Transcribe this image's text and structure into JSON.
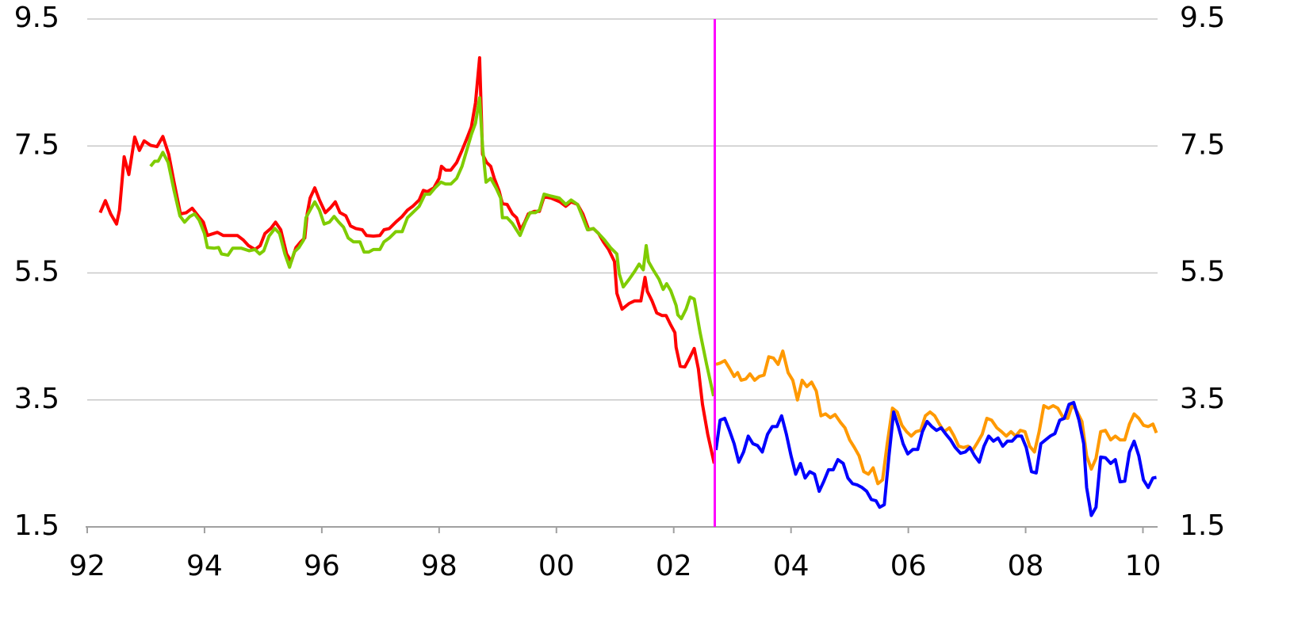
{
  "chart_data": {
    "type": "line",
    "xlim": [
      1992,
      2010.25
    ],
    "xticks": [
      {
        "value": 1992,
        "label": "92"
      },
      {
        "value": 1994,
        "label": "94"
      },
      {
        "value": 1996,
        "label": "96"
      },
      {
        "value": 1998,
        "label": "98"
      },
      {
        "value": 2000,
        "label": "00"
      },
      {
        "value": 2002,
        "label": "02"
      },
      {
        "value": 2004,
        "label": "04"
      },
      {
        "value": 2006,
        "label": "06"
      },
      {
        "value": 2008,
        "label": "08"
      },
      {
        "value": 2010,
        "label": "10"
      }
    ],
    "ylim": [
      1.5,
      9.5
    ],
    "yticks": [
      1.5,
      3.5,
      5.5,
      7.5,
      9.5
    ],
    "y2lim": [
      1.5,
      9.5
    ],
    "y2ticks": [
      1.5,
      3.5,
      5.5,
      7.5,
      9.5
    ],
    "grid": true,
    "vertical_line": {
      "x": 2002.7,
      "color": "#ff00ff"
    },
    "series": [
      {
        "color": "#ff0000",
        "x": [
          1992.22,
          1992.31,
          1992.4,
          1992.5,
          1992.55,
          1992.63,
          1992.71,
          1992.81,
          1992.89,
          1992.97,
          1993.08,
          1993.19,
          1993.29,
          1993.39,
          1993.48,
          1993.59,
          1993.69,
          1993.79,
          1993.89,
          1993.98,
          1994.05,
          1994.22,
          1994.32,
          1994.56,
          1994.66,
          1994.75,
          1994.86,
          1994.95,
          1995.03,
          1995.13,
          1995.21,
          1995.3,
          1995.4,
          1995.48,
          1995.56,
          1995.64,
          1995.71,
          1995.75,
          1995.8,
          1995.88,
          1995.96,
          1996.06,
          1996.15,
          1996.23,
          1996.31,
          1996.41,
          1996.49,
          1996.58,
          1996.69,
          1996.76,
          1996.88,
          1996.99,
          1997.06,
          1997.15,
          1997.26,
          1997.37,
          1997.46,
          1997.55,
          1997.66,
          1997.73,
          1997.8,
          1997.91,
          1998.0,
          1998.04,
          1998.11,
          1998.2,
          1998.3,
          1998.39,
          1998.47,
          1998.55,
          1998.62,
          1998.69,
          1998.74,
          1998.81,
          1998.88,
          1998.94,
          1999.02,
          1999.08,
          1999.16,
          1999.25,
          1999.32,
          1999.39,
          1999.46,
          1999.52,
          1999.62,
          1999.71,
          1999.79,
          1999.91,
          2000.06,
          2000.16,
          2000.25,
          2000.36,
          2000.45,
          2000.55,
          2000.63,
          2000.72,
          2000.8,
          2000.89,
          2000.99,
          2001.03,
          2001.12,
          2001.24,
          2001.33,
          2001.44,
          2001.51,
          2001.55,
          2001.63,
          2001.71,
          2001.8,
          2001.87,
          2001.95,
          2002.02,
          2002.04,
          2002.11,
          2002.19,
          2002.27,
          2002.35,
          2002.42,
          2002.49,
          2002.58,
          2002.69
        ],
        "values": [
          6.45,
          6.64,
          6.43,
          6.27,
          6.49,
          7.33,
          7.05,
          7.64,
          7.43,
          7.58,
          7.51,
          7.49,
          7.65,
          7.37,
          6.93,
          6.43,
          6.45,
          6.52,
          6.4,
          6.3,
          6.09,
          6.14,
          6.09,
          6.09,
          6.02,
          5.93,
          5.87,
          5.93,
          6.12,
          6.2,
          6.3,
          6.18,
          5.8,
          5.68,
          5.9,
          5.99,
          6.05,
          6.43,
          6.68,
          6.84,
          6.65,
          6.45,
          6.53,
          6.62,
          6.45,
          6.4,
          6.24,
          6.2,
          6.18,
          6.09,
          6.08,
          6.09,
          6.18,
          6.2,
          6.3,
          6.39,
          6.49,
          6.55,
          6.65,
          6.8,
          6.78,
          6.84,
          6.99,
          7.18,
          7.12,
          7.12,
          7.24,
          7.43,
          7.61,
          7.8,
          8.18,
          8.89,
          7.37,
          7.24,
          7.18,
          6.99,
          6.8,
          6.59,
          6.58,
          6.43,
          6.37,
          6.18,
          6.3,
          6.43,
          6.47,
          6.47,
          6.7,
          6.68,
          6.62,
          6.55,
          6.62,
          6.58,
          6.43,
          6.18,
          6.2,
          6.12,
          5.99,
          5.87,
          5.68,
          5.18,
          4.93,
          5.02,
          5.06,
          5.06,
          5.43,
          5.21,
          5.06,
          4.87,
          4.83,
          4.83,
          4.68,
          4.56,
          4.33,
          4.03,
          4.02,
          4.16,
          4.31,
          3.99,
          3.43,
          2.96,
          2.5
        ]
      },
      {
        "color": "#7fcc00",
        "x": [
          1993.08,
          1993.15,
          1993.21,
          1993.29,
          1993.38,
          1993.48,
          1993.58,
          1993.66,
          1993.75,
          1993.83,
          1993.91,
          1994.0,
          1994.05,
          1994.16,
          1994.24,
          1994.29,
          1994.4,
          1994.48,
          1994.63,
          1994.76,
          1994.86,
          1994.94,
          1995.01,
          1995.1,
          1995.2,
          1995.28,
          1995.37,
          1995.45,
          1995.53,
          1995.61,
          1995.69,
          1995.73,
          1995.8,
          1995.88,
          1995.96,
          1996.04,
          1996.13,
          1996.21,
          1996.29,
          1996.37,
          1996.45,
          1996.54,
          1996.65,
          1996.72,
          1996.8,
          1996.88,
          1996.99,
          1997.06,
          1997.15,
          1997.26,
          1997.37,
          1997.46,
          1997.55,
          1997.66,
          1997.76,
          1997.84,
          1997.93,
          1998.03,
          1998.11,
          1998.2,
          1998.3,
          1998.39,
          1998.47,
          1998.55,
          1998.62,
          1998.69,
          1998.74,
          1998.8,
          1998.88,
          1998.97,
          1999.05,
          1999.08,
          1999.16,
          1999.25,
          1999.38,
          1999.47,
          1999.55,
          1999.64,
          1999.71,
          1999.79,
          1999.91,
          2000.05,
          2000.16,
          2000.25,
          2000.36,
          2000.45,
          2000.53,
          2000.63,
          2000.72,
          2000.82,
          2000.92,
          2001.03,
          2001.07,
          2001.14,
          2001.24,
          2001.33,
          2001.41,
          2001.48,
          2001.53,
          2001.57,
          2001.65,
          2001.75,
          2001.82,
          2001.88,
          2001.95,
          2002.04,
          2002.07,
          2002.13,
          2002.21,
          2002.28,
          2002.35,
          2002.45,
          2002.56,
          2002.68
        ],
        "values": [
          7.18,
          7.26,
          7.26,
          7.4,
          7.24,
          6.8,
          6.4,
          6.3,
          6.39,
          6.43,
          6.33,
          6.12,
          5.9,
          5.89,
          5.9,
          5.8,
          5.78,
          5.89,
          5.89,
          5.85,
          5.87,
          5.8,
          5.85,
          6.08,
          6.2,
          6.12,
          5.8,
          5.59,
          5.83,
          5.9,
          6.02,
          6.37,
          6.49,
          6.62,
          6.49,
          6.27,
          6.3,
          6.39,
          6.3,
          6.22,
          6.05,
          5.99,
          5.99,
          5.83,
          5.83,
          5.87,
          5.87,
          5.99,
          6.05,
          6.15,
          6.15,
          6.37,
          6.45,
          6.55,
          6.74,
          6.74,
          6.84,
          6.93,
          6.9,
          6.9,
          6.99,
          7.18,
          7.43,
          7.68,
          7.86,
          8.26,
          7.49,
          6.93,
          6.99,
          6.84,
          6.68,
          6.37,
          6.37,
          6.28,
          6.09,
          6.3,
          6.45,
          6.45,
          6.49,
          6.74,
          6.71,
          6.68,
          6.58,
          6.65,
          6.58,
          6.37,
          6.18,
          6.2,
          6.12,
          6.02,
          5.9,
          5.8,
          5.49,
          5.28,
          5.4,
          5.52,
          5.64,
          5.55,
          5.93,
          5.68,
          5.55,
          5.4,
          5.24,
          5.33,
          5.22,
          4.99,
          4.84,
          4.78,
          4.93,
          5.12,
          5.09,
          4.56,
          4.06,
          3.56
        ]
      },
      {
        "color": "#ff9900",
        "x": [
          2002.72,
          2002.79,
          2002.87,
          2002.95,
          2003.03,
          2003.09,
          2003.15,
          2003.23,
          2003.3,
          2003.38,
          2003.46,
          2003.54,
          2003.62,
          2003.7,
          2003.78,
          2003.86,
          2003.95,
          2004.03,
          2004.11,
          2004.19,
          2004.27,
          2004.35,
          2004.43,
          2004.51,
          2004.59,
          2004.67,
          2004.75,
          2004.84,
          2004.92,
          2005.0,
          2005.08,
          2005.16,
          2005.24,
          2005.32,
          2005.4,
          2005.48,
          2005.56,
          2005.64,
          2005.73,
          2005.81,
          2005.89,
          2005.97,
          2006.05,
          2006.13,
          2006.21,
          2006.29,
          2006.37,
          2006.45,
          2006.53,
          2006.61,
          2006.7,
          2006.78,
          2006.86,
          2006.94,
          2007.02,
          2007.1,
          2007.18,
          2007.26,
          2007.34,
          2007.42,
          2007.51,
          2007.59,
          2007.67,
          2007.75,
          2007.83,
          2007.91,
          2007.99,
          2008.07,
          2008.15,
          2008.23,
          2008.31,
          2008.39,
          2008.47,
          2008.55,
          2008.64,
          2008.72,
          2008.8,
          2008.88,
          2008.96,
          2009.04,
          2009.12,
          2009.2,
          2009.28,
          2009.36,
          2009.45,
          2009.53,
          2009.61,
          2009.69,
          2009.77,
          2009.85,
          2009.93,
          2010.01,
          2010.09,
          2010.17,
          2010.23
        ],
        "values": [
          4.06,
          4.08,
          4.12,
          4.0,
          3.87,
          3.93,
          3.81,
          3.83,
          3.91,
          3.81,
          3.87,
          3.89,
          4.18,
          4.16,
          4.06,
          4.27,
          3.93,
          3.81,
          3.5,
          3.81,
          3.71,
          3.78,
          3.64,
          3.25,
          3.28,
          3.22,
          3.27,
          3.15,
          3.06,
          2.87,
          2.75,
          2.62,
          2.37,
          2.33,
          2.43,
          2.18,
          2.24,
          2.81,
          3.37,
          3.31,
          3.1,
          3.0,
          2.93,
          3.0,
          3.02,
          3.25,
          3.31,
          3.25,
          3.12,
          3.0,
          3.06,
          2.93,
          2.77,
          2.75,
          2.77,
          2.71,
          2.83,
          2.96,
          3.21,
          3.18,
          3.06,
          3.0,
          2.93,
          3.0,
          2.93,
          3.02,
          3.0,
          2.77,
          2.68,
          3.0,
          3.41,
          3.37,
          3.41,
          3.37,
          3.22,
          3.21,
          3.43,
          3.31,
          3.16,
          2.62,
          2.41,
          2.58,
          3.0,
          3.02,
          2.87,
          2.93,
          2.87,
          2.87,
          3.12,
          3.28,
          3.21,
          3.1,
          3.08,
          3.12,
          2.98
        ]
      },
      {
        "color": "#0000ff",
        "x": [
          2002.72,
          2002.79,
          2002.87,
          2002.95,
          2003.03,
          2003.11,
          2003.19,
          2003.27,
          2003.35,
          2003.43,
          2003.51,
          2003.6,
          2003.68,
          2003.76,
          2003.84,
          2003.92,
          2004.0,
          2004.08,
          2004.16,
          2004.24,
          2004.32,
          2004.4,
          2004.48,
          2004.56,
          2004.64,
          2004.72,
          2004.8,
          2004.89,
          2004.97,
          2005.05,
          2005.13,
          2005.21,
          2005.29,
          2005.37,
          2005.45,
          2005.51,
          2005.59,
          2005.67,
          2005.75,
          2005.83,
          2005.91,
          2005.99,
          2006.08,
          2006.16,
          2006.24,
          2006.32,
          2006.4,
          2006.48,
          2006.56,
          2006.64,
          2006.72,
          2006.8,
          2006.89,
          2006.97,
          2007.05,
          2007.13,
          2007.21,
          2007.29,
          2007.37,
          2007.45,
          2007.53,
          2007.61,
          2007.69,
          2007.77,
          2007.85,
          2007.93,
          2008.01,
          2008.1,
          2008.18,
          2008.26,
          2008.34,
          2008.42,
          2008.5,
          2008.58,
          2008.66,
          2008.74,
          2008.82,
          2008.91,
          2008.99,
          2009.04,
          2009.12,
          2009.2,
          2009.28,
          2009.36,
          2009.45,
          2009.53,
          2009.61,
          2009.69,
          2009.77,
          2009.85,
          2009.93,
          2010.01,
          2010.09,
          2010.17,
          2010.23
        ],
        "values": [
          2.71,
          3.18,
          3.21,
          3.02,
          2.81,
          2.52,
          2.68,
          2.93,
          2.81,
          2.78,
          2.68,
          2.96,
          3.08,
          3.08,
          3.25,
          2.96,
          2.62,
          2.33,
          2.5,
          2.27,
          2.37,
          2.33,
          2.06,
          2.22,
          2.4,
          2.4,
          2.56,
          2.5,
          2.27,
          2.18,
          2.16,
          2.12,
          2.06,
          1.93,
          1.91,
          1.81,
          1.85,
          2.62,
          3.31,
          3.08,
          2.81,
          2.65,
          2.72,
          2.72,
          3.0,
          3.16,
          3.08,
          3.02,
          3.06,
          2.96,
          2.87,
          2.75,
          2.66,
          2.68,
          2.75,
          2.62,
          2.52,
          2.77,
          2.93,
          2.85,
          2.9,
          2.77,
          2.85,
          2.85,
          2.93,
          2.93,
          2.75,
          2.37,
          2.35,
          2.81,
          2.87,
          2.93,
          2.97,
          3.18,
          3.21,
          3.43,
          3.46,
          3.18,
          2.81,
          2.12,
          1.68,
          1.81,
          2.6,
          2.59,
          2.5,
          2.56,
          2.21,
          2.22,
          2.68,
          2.85,
          2.62,
          2.24,
          2.12,
          2.27,
          2.28
        ]
      }
    ]
  }
}
